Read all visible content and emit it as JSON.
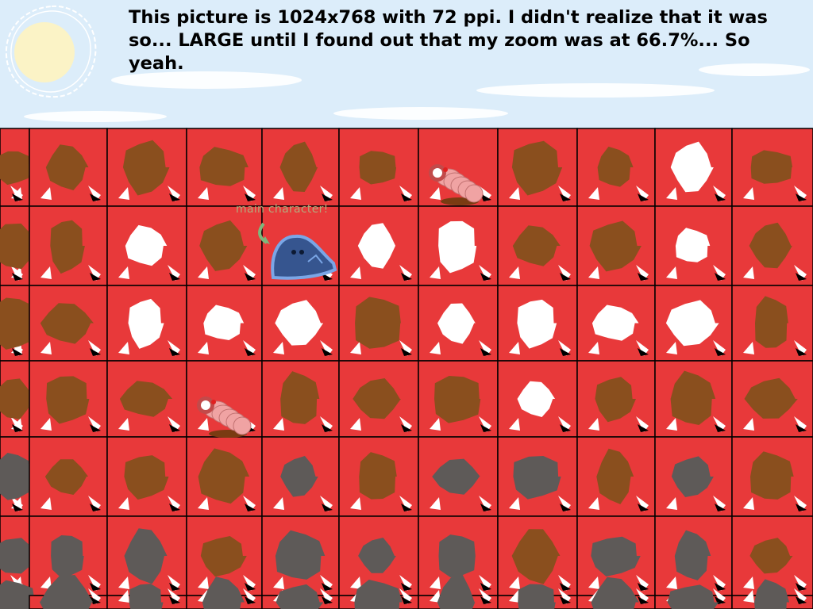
{
  "caption": "This picture is 1024x768 with 72 ppi. I didn't realize that it was so... LARGE until I found out that my zoom was at 66.7%... So yeah.",
  "main_character_label": "main character!",
  "colors": {
    "sky": "#dcedfa",
    "tile": "#e8393a",
    "grid_line": "#000000",
    "dirt": "#8a4f1e",
    "snow": "#ffffff",
    "stone": "#5e5a58",
    "player": "#36558f",
    "player_outline": "#7aa6e6",
    "worm": "#f0a3a3",
    "label": "#b4aa7c"
  },
  "grid": {
    "columns": 11,
    "rows": 7,
    "tiles": [
      [
        "dirt",
        "dirt",
        "dirt",
        "dirt",
        "dirt",
        "dirt",
        "worm",
        "dirt",
        "dirt",
        "snow",
        "dirt"
      ],
      [
        "dirt",
        "dirt",
        "snow",
        "dirt",
        "player",
        "snow",
        "snow",
        "dirt",
        "dirt",
        "snow",
        "dirt"
      ],
      [
        "dirt",
        "dirt",
        "snow",
        "snow",
        "snow",
        "dirt",
        "snow",
        "snow",
        "snow",
        "snow",
        "dirt"
      ],
      [
        "dirt",
        "dirt",
        "dirt",
        "worm",
        "dirt",
        "dirt",
        "dirt",
        "snow",
        "dirt",
        "dirt",
        "dirt"
      ],
      [
        "stone",
        "dirt",
        "dirt",
        "dirt",
        "stone",
        "dirt",
        "stone",
        "stone",
        "dirt",
        "stone",
        "dirt"
      ],
      [
        "stone",
        "stone",
        "stone",
        "dirt",
        "stone",
        "stone",
        "stone",
        "dirt",
        "stone",
        "stone",
        "dirt"
      ],
      [
        "stone",
        "stone",
        "stone",
        "stone",
        "stone",
        "stone",
        "stone",
        "stone",
        "stone",
        "stone",
        "stone"
      ]
    ]
  },
  "entities": {
    "player": "slime-character",
    "enemies": [
      "worm-enemy",
      "worm-enemy"
    ]
  }
}
